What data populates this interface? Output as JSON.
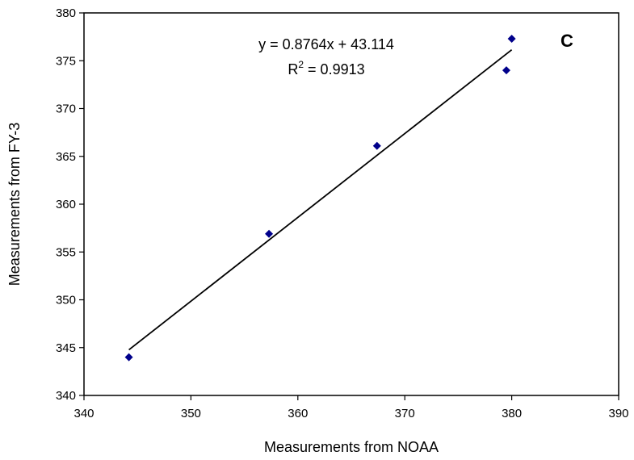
{
  "chart_data": {
    "type": "scatter",
    "title": "",
    "panel_label": "C",
    "xlabel": "Measurements from NOAA",
    "ylabel": "Measurements from FY-3",
    "xlim": [
      340,
      390
    ],
    "ylim": [
      340,
      380
    ],
    "x_ticks": [
      "340",
      "350",
      "360",
      "370",
      "380",
      "390"
    ],
    "y_ticks": [
      "340",
      "345",
      "350",
      "355",
      "360",
      "365",
      "370",
      "375",
      "380"
    ],
    "grid": false,
    "marker_color": "#00008B",
    "line_color": "#000000",
    "points": [
      {
        "x": 344.2,
        "y": 344.0
      },
      {
        "x": 357.3,
        "y": 356.9
      },
      {
        "x": 367.4,
        "y": 366.1
      },
      {
        "x": 379.5,
        "y": 374.0
      },
      {
        "x": 380.0,
        "y": 377.3
      }
    ],
    "trendline": {
      "slope": 0.8764,
      "intercept": 43.114,
      "x_range": [
        344.2,
        380.0
      ],
      "equation": "y = 0.8764x + 43.114",
      "r2_prefix": "R",
      "r2_superscript": "2",
      "r2_value": " = 0.9913"
    }
  }
}
